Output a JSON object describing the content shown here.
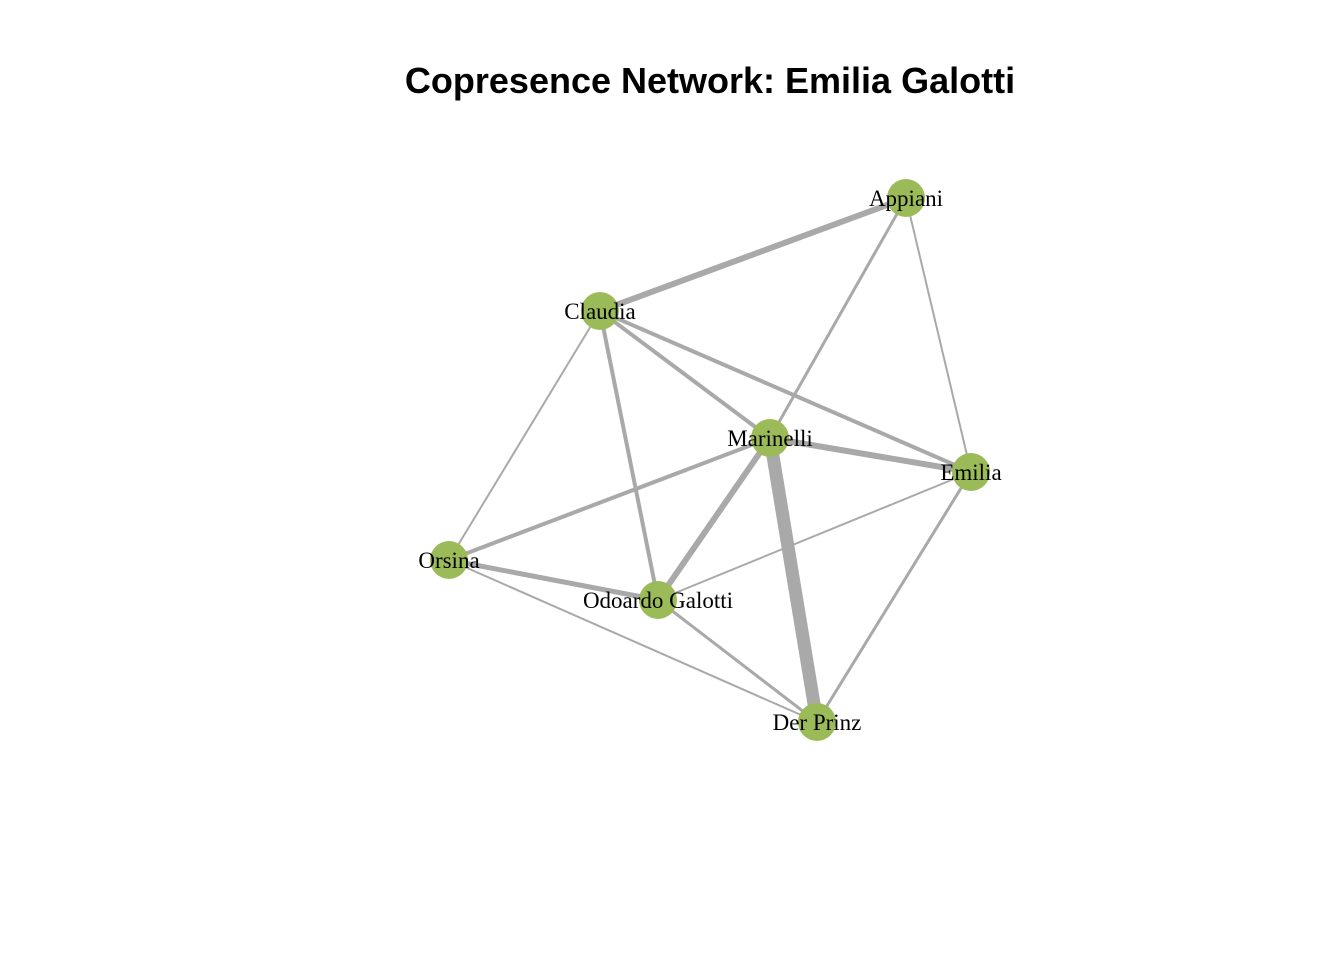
{
  "title": "Copresence Network: Emilia Galotti",
  "colors": {
    "node": "#9bbb59",
    "edge": "#a9a9a9",
    "background": "#ffffff",
    "label": "#000000"
  },
  "nodes": [
    {
      "id": "appiani",
      "label": "Appiani"
    },
    {
      "id": "claudia",
      "label": "Claudia"
    },
    {
      "id": "marinelli",
      "label": "Marinelli"
    },
    {
      "id": "emilia",
      "label": "Emilia"
    },
    {
      "id": "orsina",
      "label": "Orsina"
    },
    {
      "id": "odoardo",
      "label": "Odoardo Galotti"
    },
    {
      "id": "prinz",
      "label": "Der Prinz"
    }
  ],
  "edges": [
    {
      "source": "claudia",
      "target": "appiani",
      "weight": 6
    },
    {
      "source": "appiani",
      "target": "marinelli",
      "weight": 3
    },
    {
      "source": "appiani",
      "target": "emilia",
      "weight": 2
    },
    {
      "source": "claudia",
      "target": "marinelli",
      "weight": 4
    },
    {
      "source": "claudia",
      "target": "emilia",
      "weight": 4
    },
    {
      "source": "claudia",
      "target": "odoardo",
      "weight": 4
    },
    {
      "source": "claudia",
      "target": "orsina",
      "weight": 2
    },
    {
      "source": "marinelli",
      "target": "emilia",
      "weight": 6
    },
    {
      "source": "marinelli",
      "target": "orsina",
      "weight": 4
    },
    {
      "source": "marinelli",
      "target": "odoardo",
      "weight": 6
    },
    {
      "source": "marinelli",
      "target": "prinz",
      "weight": 13
    },
    {
      "source": "emilia",
      "target": "odoardo",
      "weight": 2
    },
    {
      "source": "emilia",
      "target": "prinz",
      "weight": 3
    },
    {
      "source": "orsina",
      "target": "odoardo",
      "weight": 5
    },
    {
      "source": "orsina",
      "target": "prinz",
      "weight": 2
    },
    {
      "source": "odoardo",
      "target": "prinz",
      "weight": 3
    }
  ]
}
